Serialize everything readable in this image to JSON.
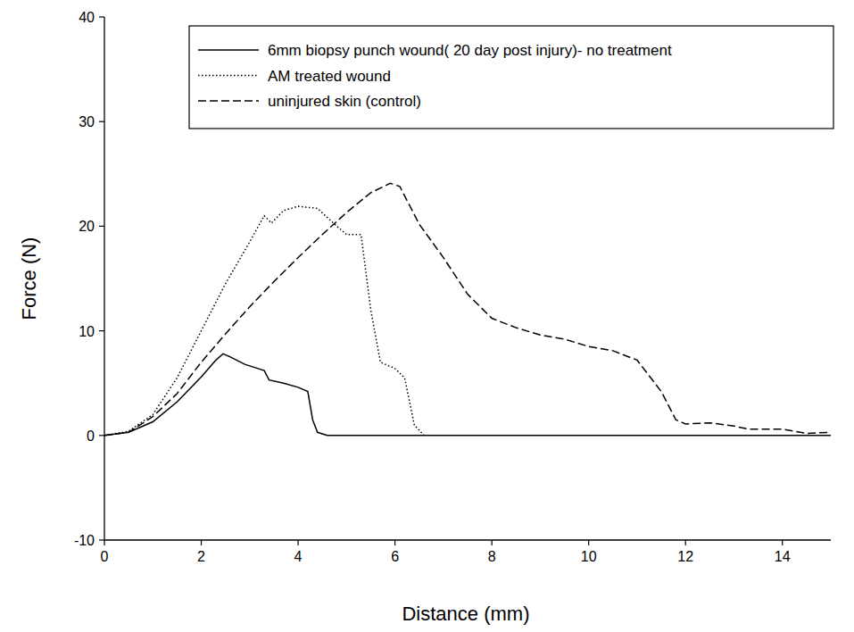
{
  "chart_data": {
    "type": "line",
    "x_label": "Distance (mm)",
    "y_label": "Force (N)",
    "xlim": [
      0,
      15
    ],
    "ylim": [
      -10,
      40
    ],
    "xticks": [
      0,
      2,
      4,
      6,
      8,
      10,
      12,
      14
    ],
    "yticks": [
      -10,
      0,
      10,
      20,
      30,
      40
    ],
    "grid": false,
    "legend": "upper right",
    "series": [
      {
        "name": "6mm biopsy punch wound( 20 day post injury)- no treatment",
        "color": "#000000",
        "line_style": "solid",
        "x": [
          0,
          0.5,
          1,
          1.5,
          2,
          2.3,
          2.45,
          2.6,
          2.9,
          3.3,
          3.4,
          3.7,
          4.0,
          4.2,
          4.3,
          4.4,
          4.6,
          15
        ],
        "values": [
          0,
          0.3,
          1.3,
          3.2,
          5.6,
          7.2,
          7.8,
          7.5,
          6.8,
          6.2,
          5.3,
          5.0,
          4.6,
          4.2,
          1.5,
          0.3,
          0,
          0
        ]
      },
      {
        "name": "AM treated wound",
        "color": "#000000",
        "line_style": "dotted",
        "x": [
          0,
          0.5,
          1,
          1.5,
          2,
          2.5,
          3,
          3.3,
          3.45,
          3.7,
          4,
          4.4,
          4.8,
          5.0,
          5.3,
          5.5,
          5.7,
          6.0,
          6.2,
          6.4,
          6.6
        ],
        "values": [
          0,
          0.4,
          2.0,
          5.5,
          10,
          14.5,
          18.5,
          21,
          20.3,
          21.5,
          21.9,
          21.7,
          20,
          19.2,
          19.2,
          12,
          7,
          6.4,
          5.5,
          1,
          0
        ]
      },
      {
        "name": "uninjured skin (control)",
        "color": "#000000",
        "line_style": "dashed",
        "x": [
          0,
          0.5,
          1,
          1.5,
          2,
          2.5,
          3,
          3.5,
          4,
          4.5,
          5,
          5.5,
          5.9,
          6.1,
          6.3,
          6.5,
          7,
          7.5,
          8,
          8.5,
          9,
          9.5,
          10,
          10.5,
          11,
          11.5,
          11.8,
          12,
          12.5,
          13,
          13.3,
          14,
          14.5,
          15
        ],
        "values": [
          0,
          0.3,
          1.8,
          4,
          7,
          9.7,
          12.3,
          14.7,
          17,
          19.2,
          21.3,
          23.2,
          24.1,
          23.8,
          22,
          20.2,
          17,
          13.5,
          11.2,
          10.3,
          9.6,
          9.2,
          8.5,
          8.1,
          7.2,
          4.2,
          1.5,
          1.1,
          1.2,
          0.9,
          0.6,
          0.6,
          0.2,
          0.3
        ]
      }
    ]
  }
}
